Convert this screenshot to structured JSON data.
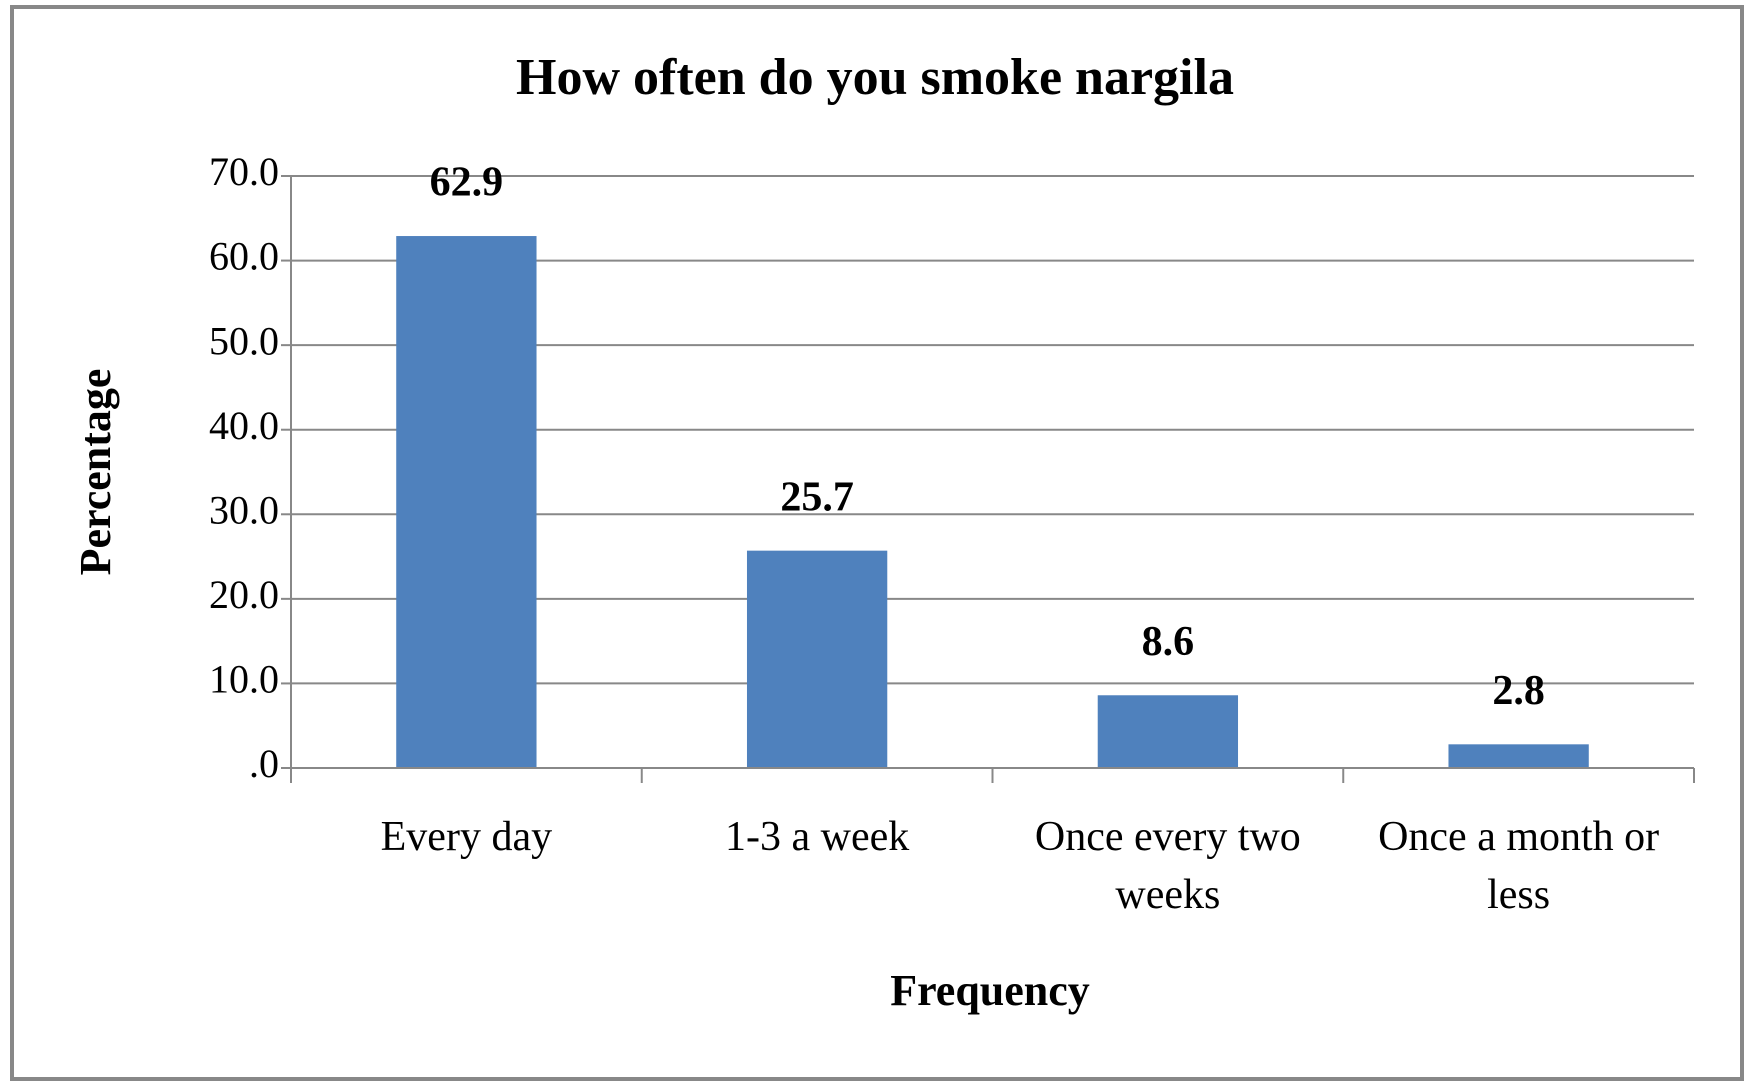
{
  "chart_data": {
    "type": "bar",
    "title": "How often do you smoke nargila",
    "x_label": "Frequency",
    "y_label": "Percentage",
    "categories": [
      "Every day",
      "1-3 a week",
      "Once every two weeks",
      "Once a month or less"
    ],
    "values": [
      62.9,
      25.7,
      8.6,
      2.8
    ],
    "color": "#4f81bd",
    "ylim": [
      0,
      70
    ],
    "yticks": [
      {
        "value": 0,
        "label": ".0"
      },
      {
        "value": 10,
        "label": "10.0"
      },
      {
        "value": 20,
        "label": "20.0"
      },
      {
        "value": 30,
        "label": "30.0"
      },
      {
        "value": 40,
        "label": "40.0"
      },
      {
        "value": 50,
        "label": "50.0"
      },
      {
        "value": 60,
        "label": "60.0"
      },
      {
        "value": 70,
        "label": "70.0"
      }
    ],
    "grid": true
  }
}
